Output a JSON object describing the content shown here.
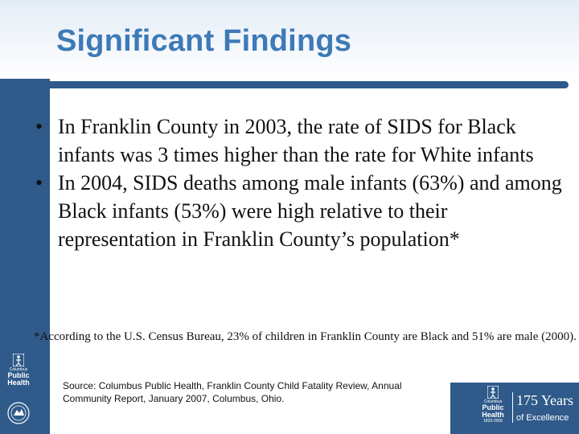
{
  "slide": {
    "title": "Significant Findings",
    "bullets": [
      {
        "marker": "•",
        "text": "In Franklin County in 2003, the rate of SIDS for Black infants was 3 times higher than the rate for White infants"
      },
      {
        "marker": "•",
        "text": "In 2004, SIDS deaths among male infants (63%) and among Black infants (53%) were high relative to their representation in Franklin County’s population*"
      }
    ],
    "footnote": "*According to the U.S. Census Bureau, 23% of children in Franklin County are Black and 51% are male (2000).",
    "source": "Source: Columbus Public Health, Franklin County Child Fatality Review, Annual Community Report, January 2007, Columbus, Ohio."
  },
  "logo_left": {
    "line1": "Columbus",
    "line2": "Public",
    "line3": "Health"
  },
  "logo_right": {
    "line1": "Columbus",
    "line2": "Public",
    "line3": "Health",
    "line4": "1833-2008"
  },
  "anniversary": {
    "years": "175 Years",
    "tagline": "of Excellence"
  },
  "colors": {
    "band": "#2f5a8a",
    "title": "#3d7ab7",
    "title_bg": "#e3ecf6"
  }
}
